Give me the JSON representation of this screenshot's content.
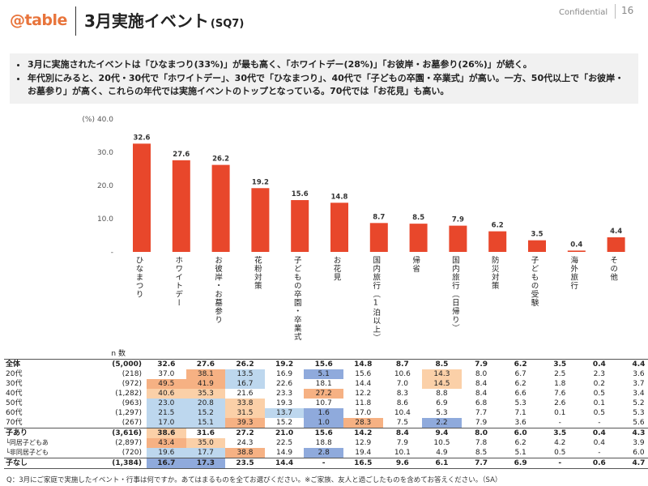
{
  "header": {
    "logo": "@table",
    "title": "3月実施イベント",
    "title_code": "(SQ7)",
    "confidential": "Confidential",
    "page_number": "16"
  },
  "summary": {
    "bullets": [
      "3月に実施されたイベントは「ひなまつり(33%)」が最も高く、「ホワイトデー(28%)」「お彼岸・お墓参り(26%)」が続く。",
      "年代別にみると、20代・30代で「ホワイトデー」、30代で「ひなまつり」、40代で「子どもの卒園・卒業式」が高い。一方、50代以上で「お彼岸・お墓参り」が高く、これらの年代では実施イベントのトップとなっている。70代では「お花見」も高い。"
    ]
  },
  "chart_data": {
    "type": "bar",
    "ylabel": "(%)",
    "ylim": [
      0,
      40
    ],
    "yticks": [
      "-",
      "10.0",
      "20.0",
      "30.0",
      "40.0"
    ],
    "bar_color": "#e8472b",
    "categories": [
      "ひなまつり",
      "ホワイトデー",
      "お彼岸・お墓参り",
      "花粉対策",
      "子どもの卒園・卒業式",
      "お花見",
      "国内旅行（1泊以上）",
      "帰省",
      "国内旅行（日帰り）",
      "防災対策",
      "子どもの受験",
      "海外旅行",
      "その他"
    ],
    "values": [
      32.6,
      27.6,
      26.2,
      19.2,
      15.6,
      14.8,
      8.7,
      8.5,
      7.9,
      6.2,
      3.5,
      0.4,
      4.4
    ],
    "value_labels": [
      "32.6",
      "27.6",
      "26.2",
      "19.2",
      "15.6",
      "14.8",
      "8.7",
      "8.5",
      "7.9",
      "6.2",
      "3.5",
      "0.4",
      "4.4"
    ]
  },
  "table": {
    "n_header": "n 数",
    "rows": [
      {
        "label": "全体",
        "n": "(5,000)",
        "values": [
          "32.6",
          "27.6",
          "26.2",
          "19.2",
          "15.6",
          "14.8",
          "8.7",
          "8.5",
          "7.9",
          "6.2",
          "3.5",
          "0.4",
          "4.4"
        ],
        "hl": [
          "",
          "",
          "",
          "",
          "",
          "",
          "",
          "",
          "",
          "",
          "",
          "",
          ""
        ],
        "bold": true
      },
      {
        "label": "20代",
        "n": "(218)",
        "values": [
          "37.0",
          "38.1",
          "13.5",
          "16.9",
          "5.1",
          "15.6",
          "10.6",
          "14.3",
          "8.0",
          "6.7",
          "2.5",
          "2.3",
          "3.6"
        ],
        "hl": [
          "",
          "hi",
          "lo2",
          "",
          "lo",
          "",
          "",
          "hi2",
          "",
          "",
          "",
          "",
          ""
        ],
        "bold": false
      },
      {
        "label": "30代",
        "n": "(972)",
        "values": [
          "49.5",
          "41.9",
          "16.7",
          "22.6",
          "18.1",
          "14.4",
          "7.0",
          "14.5",
          "8.4",
          "6.2",
          "1.8",
          "0.2",
          "3.7"
        ],
        "hl": [
          "hi",
          "hi",
          "lo2",
          "",
          "",
          "",
          "",
          "hi2",
          "",
          "",
          "",
          "",
          ""
        ],
        "bold": false
      },
      {
        "label": "40代",
        "n": "(1,282)",
        "values": [
          "40.6",
          "35.3",
          "21.6",
          "23.3",
          "27.2",
          "12.2",
          "8.3",
          "8.8",
          "8.4",
          "6.6",
          "7.6",
          "0.5",
          "3.4"
        ],
        "hl": [
          "hi2",
          "hi2",
          "",
          "",
          "hi",
          "",
          "",
          "",
          "",
          "",
          "",
          "",
          ""
        ],
        "bold": false
      },
      {
        "label": "50代",
        "n": "(963)",
        "values": [
          "23.0",
          "20.8",
          "33.8",
          "19.3",
          "10.7",
          "11.8",
          "8.6",
          "6.9",
          "6.8",
          "5.3",
          "2.6",
          "0.1",
          "5.2"
        ],
        "hl": [
          "lo2",
          "lo2",
          "hi2",
          "",
          "",
          "",
          "",
          "",
          "",
          "",
          "",
          "",
          ""
        ],
        "bold": false
      },
      {
        "label": "60代",
        "n": "(1,297)",
        "values": [
          "21.5",
          "15.2",
          "31.5",
          "13.7",
          "1.6",
          "17.0",
          "10.4",
          "5.3",
          "7.7",
          "7.1",
          "0.1",
          "0.5",
          "5.3"
        ],
        "hl": [
          "lo2",
          "lo2",
          "hi2",
          "lo2",
          "lo",
          "",
          "",
          "",
          "",
          "",
          "",
          "",
          ""
        ],
        "bold": false
      },
      {
        "label": "70代",
        "n": "(267)",
        "values": [
          "17.0",
          "15.1",
          "39.3",
          "15.2",
          "1.0",
          "28.3",
          "7.5",
          "2.2",
          "7.9",
          "3.6",
          "-",
          "-",
          "5.6"
        ],
        "hl": [
          "lo2",
          "lo2",
          "hi",
          "",
          "lo",
          "hi",
          "",
          "lo",
          "",
          "",
          "",
          "",
          ""
        ],
        "bold": false
      },
      {
        "label": "子あり",
        "n": "(3,616)",
        "values": [
          "38.6",
          "31.6",
          "27.2",
          "21.0",
          "15.6",
          "14.2",
          "8.4",
          "9.4",
          "8.0",
          "6.0",
          "3.5",
          "0.4",
          "4.3"
        ],
        "hl": [
          "hi2",
          "",
          "",
          "",
          "",
          "",
          "",
          "",
          "",
          "",
          "",
          "",
          ""
        ],
        "bold": true
      },
      {
        "label": "└同居子どもあり",
        "n": "(2,897)",
        "values": [
          "43.4",
          "35.0",
          "24.3",
          "22.5",
          "18.8",
          "12.9",
          "7.9",
          "10.5",
          "7.8",
          "6.2",
          "4.2",
          "0.4",
          "3.9"
        ],
        "hl": [
          "hi",
          "hi2",
          "",
          "",
          "",
          "",
          "",
          "",
          "",
          "",
          "",
          "",
          ""
        ],
        "bold": false
      },
      {
        "label": "└非同居子どもあり",
        "n": "(720)",
        "values": [
          "19.6",
          "17.7",
          "38.8",
          "14.9",
          "2.8",
          "19.4",
          "10.1",
          "4.9",
          "8.5",
          "5.1",
          "0.5",
          "-",
          "6.0"
        ],
        "hl": [
          "lo2",
          "lo2",
          "hi",
          "",
          "lo",
          "",
          "",
          "",
          "",
          "",
          "",
          "",
          ""
        ],
        "bold": false
      },
      {
        "label": "子なし",
        "n": "(1,384)",
        "values": [
          "16.7",
          "17.3",
          "23.5",
          "14.4",
          "-",
          "16.5",
          "9.6",
          "6.1",
          "7.7",
          "6.9",
          "-",
          "0.6",
          "4.7"
        ],
        "hl": [
          "lo",
          "lo",
          "",
          "",
          "",
          "",
          "",
          "",
          "",
          "",
          "",
          "",
          ""
        ],
        "bold": true
      }
    ]
  },
  "footnote": "Q：3月にご家庭で実施したイベント・行事は何ですか。あてはまるものを全てお選びください。※ご家族、友人と過ごしたものを含めてお答えください。（SA）"
}
